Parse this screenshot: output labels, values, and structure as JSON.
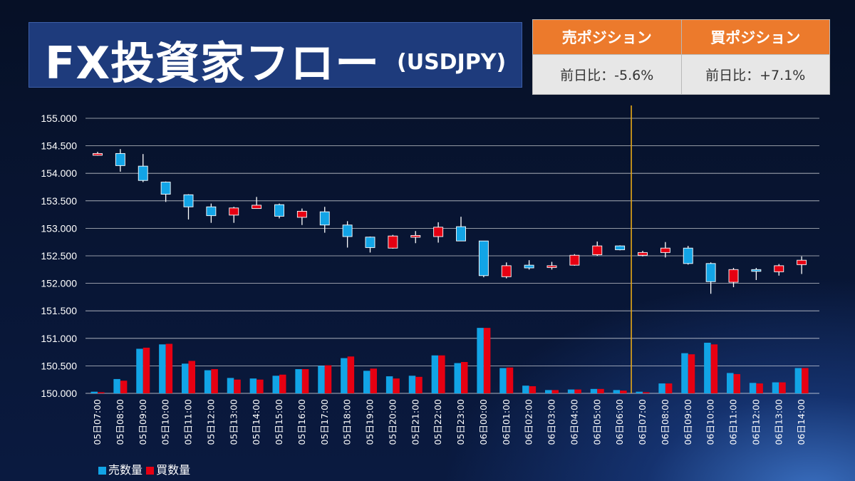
{
  "header": {
    "title": "FX投資家フロー",
    "subtitle": "(USDJPY)"
  },
  "position_table": {
    "sell_header": "売ポジション",
    "buy_header": "買ポジション",
    "sell_change": "前日比：-5.6%",
    "buy_change": "前日比：+7.1%"
  },
  "legend": {
    "sell_label": "売数量",
    "buy_label": "買数量"
  },
  "colors": {
    "sell": "#12a4e6",
    "buy": "#e60012",
    "marker_line": "#e6a817",
    "grid": "#ffffff"
  },
  "chart_data": {
    "type": "candlestick+bar",
    "ylim": [
      150.0,
      155.0
    ],
    "yticks": [
      "150.000",
      "150.500",
      "151.000",
      "151.500",
      "152.000",
      "152.500",
      "153.000",
      "153.500",
      "154.000",
      "154.500",
      "155.000"
    ],
    "grid": true,
    "legend_position": "bottom-left",
    "marker_after_category": "06日06:00",
    "categories": [
      "05日07:00",
      "05日08:00",
      "05日09:00",
      "05日10:00",
      "05日11:00",
      "05日12:00",
      "05日13:00",
      "05日14:00",
      "05日15:00",
      "05日16:00",
      "05日17:00",
      "05日18:00",
      "05日19:00",
      "05日20:00",
      "05日21:00",
      "05日22:00",
      "05日23:00",
      "06日00:00",
      "06日01:00",
      "06日02:00",
      "06日03:00",
      "06日04:00",
      "06日05:00",
      "06日06:00",
      "06日07:00",
      "06日08:00",
      "06日09:00",
      "06日10:00",
      "06日11:00",
      "06日12:00",
      "06日13:00",
      "06日14:00"
    ],
    "candles": [
      {
        "o": 154.34,
        "h": 154.39,
        "l": 154.32,
        "c": 154.36
      },
      {
        "o": 154.36,
        "h": 154.44,
        "l": 154.03,
        "c": 154.14
      },
      {
        "o": 154.13,
        "h": 154.35,
        "l": 153.84,
        "c": 153.87
      },
      {
        "o": 153.84,
        "h": 153.85,
        "l": 153.48,
        "c": 153.62
      },
      {
        "o": 153.61,
        "h": 153.62,
        "l": 153.16,
        "c": 153.39
      },
      {
        "o": 153.39,
        "h": 153.45,
        "l": 153.1,
        "c": 153.23
      },
      {
        "o": 153.24,
        "h": 153.39,
        "l": 153.1,
        "c": 153.37
      },
      {
        "o": 153.36,
        "h": 153.57,
        "l": 153.36,
        "c": 153.42
      },
      {
        "o": 153.43,
        "h": 153.45,
        "l": 153.18,
        "c": 153.22
      },
      {
        "o": 153.2,
        "h": 153.36,
        "l": 153.06,
        "c": 153.31
      },
      {
        "o": 153.3,
        "h": 153.39,
        "l": 152.92,
        "c": 153.06
      },
      {
        "o": 153.06,
        "h": 153.13,
        "l": 152.65,
        "c": 152.85
      },
      {
        "o": 152.84,
        "h": 152.85,
        "l": 152.56,
        "c": 152.65
      },
      {
        "o": 152.64,
        "h": 152.88,
        "l": 152.63,
        "c": 152.86
      },
      {
        "o": 152.86,
        "h": 152.95,
        "l": 152.73,
        "c": 152.87
      },
      {
        "o": 152.85,
        "h": 153.11,
        "l": 152.74,
        "c": 153.02
      },
      {
        "o": 153.03,
        "h": 153.21,
        "l": 152.77,
        "c": 152.77
      },
      {
        "o": 152.77,
        "h": 152.77,
        "l": 152.11,
        "c": 152.14
      },
      {
        "o": 152.12,
        "h": 152.38,
        "l": 152.09,
        "c": 152.32
      },
      {
        "o": 152.33,
        "h": 152.42,
        "l": 152.25,
        "c": 152.28
      },
      {
        "o": 152.29,
        "h": 152.39,
        "l": 152.25,
        "c": 152.32
      },
      {
        "o": 152.33,
        "h": 152.53,
        "l": 152.32,
        "c": 152.51
      },
      {
        "o": 152.52,
        "h": 152.76,
        "l": 152.5,
        "c": 152.68
      },
      {
        "o": 152.68,
        "h": 152.69,
        "l": 152.6,
        "c": 152.61
      },
      {
        "o": 152.51,
        "h": 152.59,
        "l": 152.49,
        "c": 152.56
      },
      {
        "o": 152.56,
        "h": 152.75,
        "l": 152.47,
        "c": 152.64
      },
      {
        "o": 152.64,
        "h": 152.68,
        "l": 152.34,
        "c": 152.36
      },
      {
        "o": 152.36,
        "h": 152.38,
        "l": 151.81,
        "c": 152.03
      },
      {
        "o": 152.02,
        "h": 152.28,
        "l": 151.93,
        "c": 152.25
      },
      {
        "o": 152.25,
        "h": 152.28,
        "l": 152.06,
        "c": 152.22
      },
      {
        "o": 152.21,
        "h": 152.35,
        "l": 152.14,
        "c": 152.32
      },
      {
        "o": 152.34,
        "h": 152.49,
        "l": 152.17,
        "c": 152.42
      }
    ],
    "series": [
      {
        "name": "売数量",
        "values": [
          0.03,
          0.26,
          0.81,
          0.89,
          0.54,
          0.42,
          0.28,
          0.27,
          0.32,
          0.44,
          0.5,
          0.64,
          0.41,
          0.31,
          0.32,
          0.69,
          0.55,
          1.19,
          0.46,
          0.14,
          0.06,
          0.07,
          0.08,
          0.06,
          0.03,
          0.18,
          0.73,
          0.92,
          0.37,
          0.19,
          0.2,
          0.46
        ]
      },
      {
        "name": "買数量",
        "values": [
          0.02,
          0.23,
          0.83,
          0.9,
          0.59,
          0.44,
          0.25,
          0.25,
          0.34,
          0.44,
          0.51,
          0.67,
          0.45,
          0.27,
          0.3,
          0.69,
          0.57,
          1.19,
          0.47,
          0.13,
          0.06,
          0.07,
          0.08,
          0.05,
          0.02,
          0.18,
          0.71,
          0.89,
          0.35,
          0.18,
          0.2,
          0.46
        ]
      }
    ]
  }
}
